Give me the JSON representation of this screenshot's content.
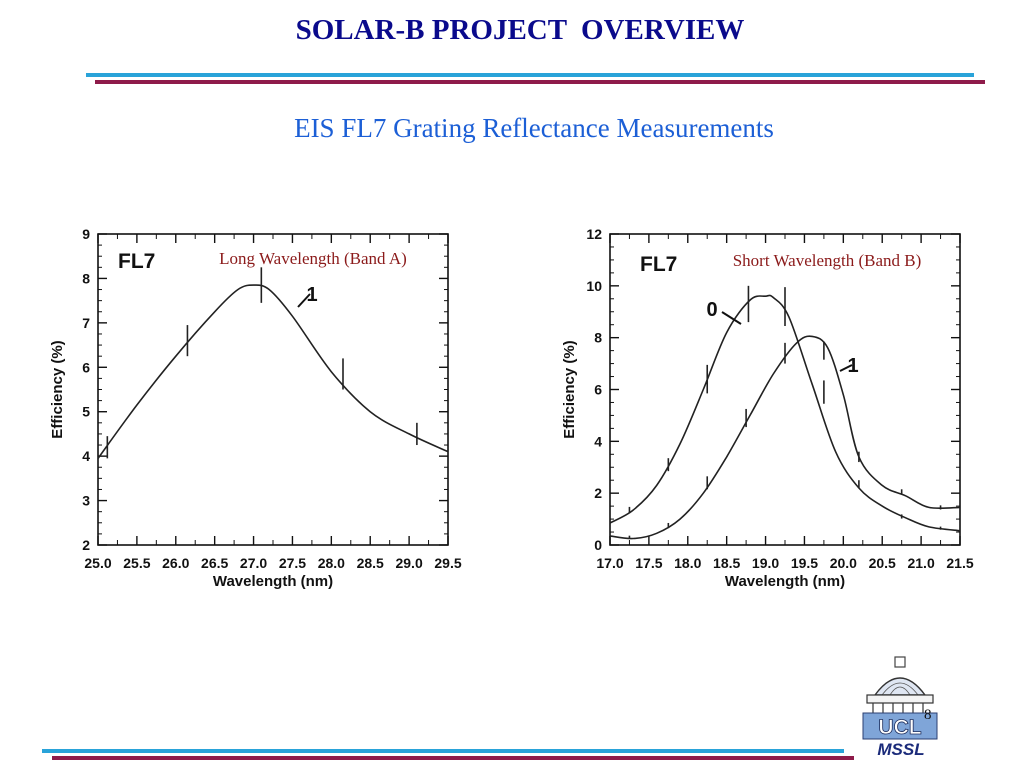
{
  "slide": {
    "title": "SOLAR-B PROJECT  OVERVIEW",
    "subtitle": "EIS FL7 Grating Reflectance Measurements",
    "page_number": "8",
    "logo_text": {
      "top": "UCL",
      "bottom": "MSSL"
    },
    "colors": {
      "title": "#0a0a8c",
      "subtitle": "#1c5fd6",
      "rule_blue": "#29a3d9",
      "rule_maroon": "#8e1b4a",
      "band_label": "#8b1a1a"
    }
  },
  "chart_data": [
    {
      "type": "line",
      "tag": "FL7",
      "band_label": "Long Wavelength (Band A)",
      "xlabel": "Wavelength  (nm)",
      "ylabel": "Efficiency  (%)",
      "xlim": [
        25.0,
        29.5
      ],
      "ylim": [
        2,
        9
      ],
      "x_ticks": [
        "25.0",
        "25.5",
        "26.0",
        "26.5",
        "27.0",
        "27.5",
        "28.0",
        "28.5",
        "29.0",
        "29.5"
      ],
      "y_ticks": [
        "2",
        "3",
        "4",
        "5",
        "6",
        "7",
        "8",
        "9"
      ],
      "series": [
        {
          "name": "1",
          "x": [
            25.0,
            25.5,
            26.0,
            26.5,
            26.8,
            27.0,
            27.2,
            27.5,
            28.0,
            28.5,
            29.0,
            29.5
          ],
          "values": [
            3.95,
            5.15,
            6.25,
            7.25,
            7.75,
            7.85,
            7.75,
            7.15,
            5.9,
            5.0,
            4.5,
            4.1
          ]
        }
      ],
      "error_bars": [
        {
          "x": 25.12,
          "y": 4.2,
          "err": 0.25
        },
        {
          "x": 26.15,
          "y": 6.6,
          "err": 0.35
        },
        {
          "x": 27.1,
          "y": 7.85,
          "err": 0.4
        },
        {
          "x": 28.15,
          "y": 5.85,
          "err": 0.35
        },
        {
          "x": 29.1,
          "y": 4.5,
          "err": 0.25
        }
      ],
      "curve_labels": [
        {
          "text": "1",
          "series": "1"
        }
      ]
    },
    {
      "type": "line",
      "tag": "FL7",
      "band_label": "Short Wavelength (Band B)",
      "xlabel": "Wavelength  (nm)",
      "ylabel": "Efficiency  (%)",
      "xlim": [
        17.0,
        21.5
      ],
      "ylim": [
        0,
        12
      ],
      "x_ticks": [
        "17.0",
        "17.5",
        "18.0",
        "18.5",
        "19.0",
        "19.5",
        "20.0",
        "20.5",
        "21.0",
        "21.5"
      ],
      "y_ticks": [
        "0",
        "2",
        "4",
        "6",
        "8",
        "10",
        "12"
      ],
      "series": [
        {
          "name": "0",
          "x": [
            17.0,
            17.3,
            17.6,
            17.9,
            18.2,
            18.5,
            18.8,
            19.0,
            19.1,
            19.3,
            19.6,
            19.9,
            20.2,
            20.5,
            20.8,
            21.1,
            21.5
          ],
          "values": [
            0.85,
            1.35,
            2.3,
            3.9,
            6.0,
            8.2,
            9.45,
            9.6,
            9.55,
            8.8,
            6.2,
            3.6,
            2.2,
            1.5,
            1.05,
            0.7,
            0.55
          ]
        },
        {
          "name": "1",
          "x": [
            17.0,
            17.3,
            17.6,
            17.9,
            18.2,
            18.5,
            18.8,
            19.1,
            19.4,
            19.6,
            19.8,
            20.0,
            20.2,
            20.5,
            20.8,
            21.1,
            21.5
          ],
          "values": [
            0.35,
            0.25,
            0.45,
            1.0,
            2.0,
            3.4,
            5.0,
            6.6,
            7.8,
            8.05,
            7.6,
            5.8,
            3.4,
            2.3,
            1.9,
            1.45,
            1.45
          ]
        }
      ],
      "error_bars": [
        {
          "x": 17.25,
          "y": 1.35,
          "err": 0.12
        },
        {
          "x": 17.75,
          "y": 3.1,
          "err": 0.25
        },
        {
          "x": 18.25,
          "y": 6.4,
          "err": 0.55
        },
        {
          "x": 18.78,
          "y": 9.3,
          "err": 0.7
        },
        {
          "x": 19.25,
          "y": 9.2,
          "err": 0.75
        },
        {
          "x": 19.75,
          "y": 5.9,
          "err": 0.45
        },
        {
          "x": 20.2,
          "y": 3.4,
          "err": 0.2
        },
        {
          "x": 17.25,
          "y": 0.3,
          "err": 0.06
        },
        {
          "x": 17.75,
          "y": 0.75,
          "err": 0.1
        },
        {
          "x": 18.25,
          "y": 2.4,
          "err": 0.25
        },
        {
          "x": 18.75,
          "y": 4.9,
          "err": 0.35
        },
        {
          "x": 19.25,
          "y": 7.4,
          "err": 0.4
        },
        {
          "x": 19.75,
          "y": 7.5,
          "err": 0.35
        },
        {
          "x": 20.2,
          "y": 2.35,
          "err": 0.15
        },
        {
          "x": 20.75,
          "y": 2.05,
          "err": 0.1
        },
        {
          "x": 20.75,
          "y": 1.1,
          "err": 0.08
        },
        {
          "x": 21.25,
          "y": 1.45,
          "err": 0.08
        },
        {
          "x": 21.25,
          "y": 0.65,
          "err": 0.06
        }
      ],
      "curve_labels": [
        {
          "text": "0",
          "series": "0"
        },
        {
          "text": "1",
          "series": "1"
        }
      ]
    }
  ]
}
